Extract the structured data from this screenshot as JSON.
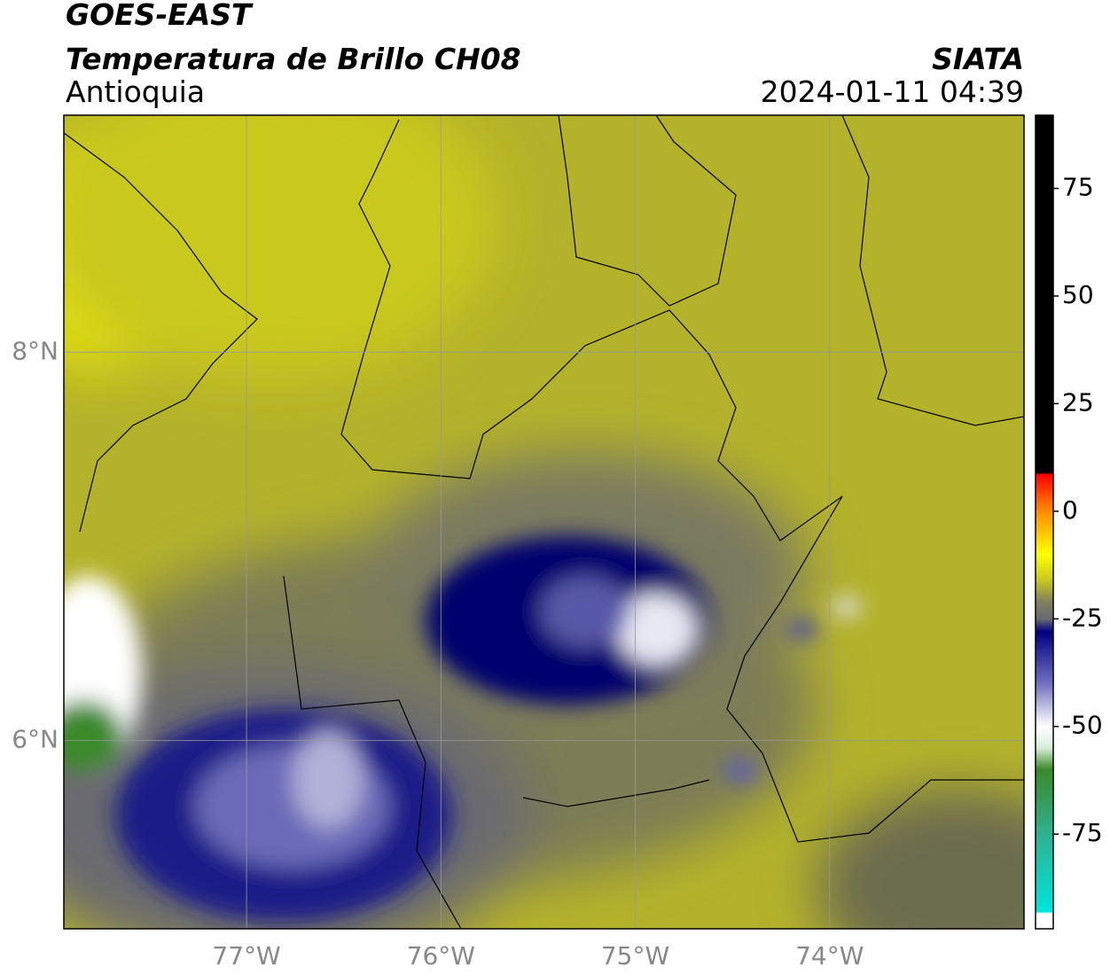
{
  "header": {
    "title": "GOES-EAST",
    "subtitle": "Temperatura de Brillo CH08",
    "region": "Antioquia",
    "source": "SIATA",
    "datetime": "2024-01-11 04:39"
  },
  "map": {
    "xlim": [
      -77.94,
      -73.0
    ],
    "ylim": [
      5.03,
      9.22
    ],
    "xticks": [
      {
        "value": -77,
        "label": "77°W"
      },
      {
        "value": -76,
        "label": "76°W"
      },
      {
        "value": -75,
        "label": "75°W"
      },
      {
        "value": -74,
        "label": "74°W"
      }
    ],
    "yticks": [
      {
        "value": 8,
        "label": "8°N"
      },
      {
        "value": 6,
        "label": "6°N"
      }
    ],
    "grid": true
  },
  "colorbar": {
    "lim": [
      -97,
      92
    ],
    "ticks": [
      75,
      50,
      25,
      0,
      -25,
      -50,
      -75
    ],
    "stops": [
      {
        "value": 92,
        "color": "#000000"
      },
      {
        "value": 9,
        "color": "#000000"
      },
      {
        "value": 8.5,
        "color": "#ff0000"
      },
      {
        "value": 0,
        "color": "#ff8c00"
      },
      {
        "value": -10,
        "color": "#ffff00"
      },
      {
        "value": -16,
        "color": "#c8c820"
      },
      {
        "value": -21,
        "color": "#808060"
      },
      {
        "value": -25,
        "color": "#6a6a70"
      },
      {
        "value": -28,
        "color": "#000080"
      },
      {
        "value": -40,
        "color": "#7070c0"
      },
      {
        "value": -50,
        "color": "#ffffff"
      },
      {
        "value": -55,
        "color": "#d8ecd8"
      },
      {
        "value": -60,
        "color": "#3a8a2a"
      },
      {
        "value": -75,
        "color": "#30b090"
      },
      {
        "value": -93,
        "color": "#00e5dc"
      },
      {
        "value": -93.5,
        "color": "#ffffff"
      },
      {
        "value": -97,
        "color": "#ffffff"
      }
    ]
  }
}
